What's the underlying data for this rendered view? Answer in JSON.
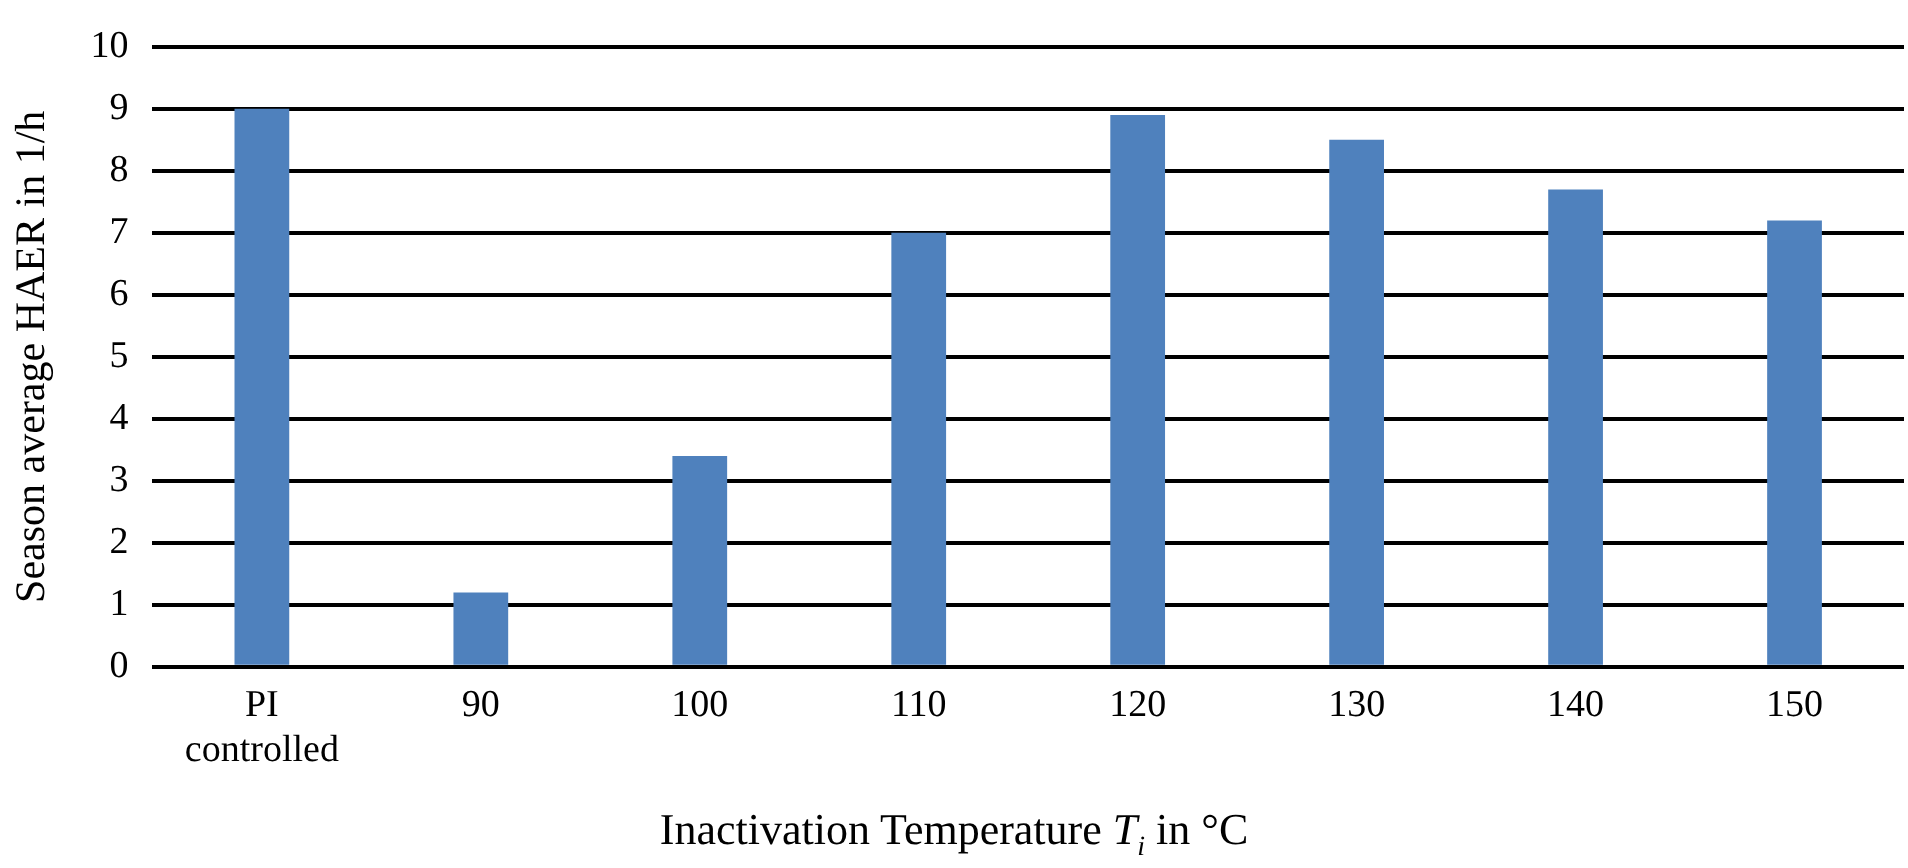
{
  "chart_data": {
    "type": "bar",
    "xlabel": "Inactivation Temperature T$_{i}$ in °C",
    "ylabel": "Season average HAER in 1/h",
    "categories": [
      "PI\ncontrolled",
      "90",
      "100",
      "110",
      "120",
      "130",
      "140",
      "150"
    ],
    "values": [
      9.0,
      1.2,
      3.4,
      7.0,
      8.9,
      8.5,
      7.7,
      7.2
    ],
    "color": "#4f81bd",
    "ylim": [
      0,
      10
    ],
    "yticks": [
      0,
      1,
      2,
      3,
      4,
      5,
      6,
      7,
      8,
      9,
      10
    ],
    "grid": "y",
    "legend": false
  }
}
